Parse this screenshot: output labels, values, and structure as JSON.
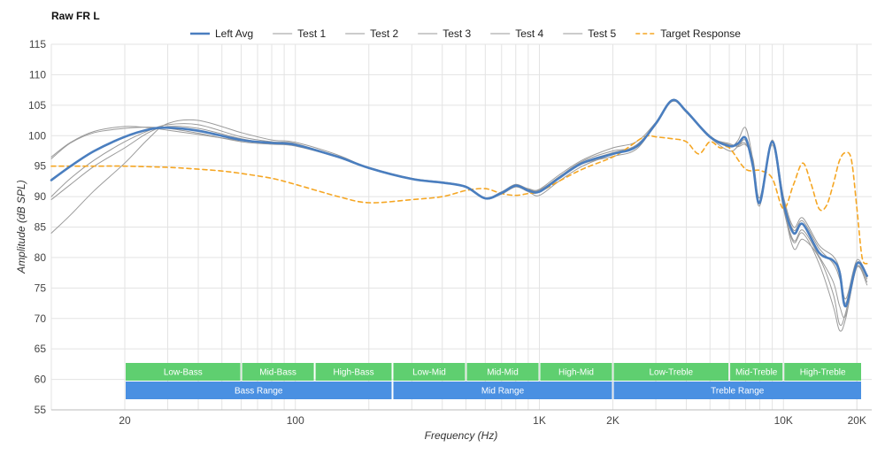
{
  "chart_data": {
    "type": "line",
    "title": "Raw FR L",
    "xlabel": "Frequency (Hz)",
    "ylabel": "Amplitude (dB SPL)",
    "x_scale": "log",
    "xlim": [
      10,
      23000
    ],
    "ylim": [
      55,
      115
    ],
    "y_ticks": [
      55,
      60,
      65,
      70,
      75,
      80,
      85,
      90,
      95,
      100,
      105,
      110,
      115
    ],
    "x_ticks": [
      {
        "value": 20,
        "label": "20"
      },
      {
        "value": 100,
        "label": "100"
      },
      {
        "value": 1000,
        "label": "1K"
      },
      {
        "value": 2000,
        "label": "2K"
      },
      {
        "value": 10000,
        "label": "10K"
      },
      {
        "value": 20000,
        "label": "20K"
      }
    ],
    "grid": true,
    "legend_position": "top",
    "series": [
      {
        "name": "Left Avg",
        "color": "#4a7ebf",
        "style": "solid",
        "width": 2.6,
        "x": [
          10,
          12,
          15,
          20,
          25,
          30,
          40,
          60,
          80,
          100,
          150,
          200,
          300,
          400,
          500,
          600,
          700,
          800,
          900,
          1000,
          1200,
          1500,
          2000,
          2500,
          3000,
          3500,
          4000,
          5000,
          6000,
          6500,
          7000,
          7500,
          8000,
          9000,
          10000,
          11000,
          12000,
          14000,
          16000,
          17000,
          18000,
          20000,
          22000
        ],
        "y": [
          92.7,
          95,
          97.5,
          99.8,
          101,
          101.3,
          100.8,
          99.3,
          98.8,
          98.5,
          96.5,
          94.7,
          92.9,
          92.3,
          91.6,
          89.7,
          90.6,
          91.8,
          91,
          90.8,
          93,
          95.5,
          97,
          98.2,
          102,
          105.8,
          104,
          99.8,
          98.3,
          98.7,
          99.6,
          95,
          89,
          99,
          89,
          84,
          85.5,
          80.8,
          79.5,
          77.5,
          72,
          79,
          77
        ]
      },
      {
        "name": "Test 1",
        "color": "#9a9a9a",
        "style": "solid",
        "width": 1,
        "x": [
          10,
          12,
          15,
          20,
          25,
          30,
          40,
          60,
          80,
          100,
          150,
          200,
          300,
          400,
          500,
          600,
          700,
          800,
          900,
          1000,
          1200,
          1500,
          2000,
          2500,
          3000,
          3500,
          4000,
          5000,
          6000,
          6500,
          7000,
          7500,
          8000,
          9000,
          10000,
          11000,
          12000,
          14000,
          16000,
          17000,
          18000,
          20000,
          22000
        ],
        "y": [
          84,
          87,
          91,
          95.5,
          99.5,
          102,
          102.5,
          100.5,
          99.3,
          98.9,
          96.8,
          94.7,
          92.9,
          92.3,
          91.6,
          89.8,
          90.4,
          91.6,
          90.8,
          90.2,
          92.5,
          95,
          97,
          98.5,
          102,
          105.9,
          104,
          100,
          98.2,
          99.2,
          101.3,
          96,
          89,
          98.5,
          88,
          82.5,
          84,
          79,
          72,
          68,
          70,
          78.5,
          76
        ]
      },
      {
        "name": "Test 2",
        "color": "#9a9a9a",
        "style": "solid",
        "width": 1,
        "x": [
          10,
          12,
          15,
          20,
          25,
          30,
          40,
          60,
          80,
          100,
          150,
          200,
          300,
          400,
          500,
          600,
          700,
          800,
          900,
          1000,
          1200,
          1500,
          2000,
          2500,
          3000,
          3500,
          4000,
          5000,
          6000,
          6500,
          7000,
          7500,
          8000,
          9000,
          10000,
          11000,
          12000,
          14000,
          16000,
          17000,
          18000,
          20000,
          22000
        ],
        "y": [
          89.5,
          92,
          95,
          98,
          100.5,
          101.5,
          101.2,
          99.5,
          98.7,
          98.4,
          96.5,
          94.7,
          92.9,
          92.3,
          91.6,
          89.6,
          90.5,
          91.7,
          91.1,
          91.2,
          93.5,
          96,
          98,
          99,
          102.2,
          105.7,
          103.8,
          99.7,
          97.5,
          98.2,
          99.2,
          94.5,
          88.5,
          98.8,
          88.5,
          81.5,
          83,
          80,
          74,
          69,
          71,
          79,
          76.5
        ]
      },
      {
        "name": "Test 3",
        "color": "#9a9a9a",
        "style": "solid",
        "width": 1,
        "x": [
          10,
          12,
          15,
          20,
          25,
          30,
          40,
          60,
          80,
          100,
          150,
          200,
          300,
          400,
          500,
          600,
          700,
          800,
          900,
          1000,
          1200,
          1500,
          2000,
          2500,
          3000,
          3500,
          4000,
          5000,
          6000,
          6500,
          7000,
          7500,
          8000,
          9000,
          10000,
          11000,
          12000,
          14000,
          16000,
          17000,
          18000,
          20000,
          22000
        ],
        "y": [
          96.2,
          98.8,
          100.5,
          101.2,
          101.4,
          101.2,
          100.4,
          99,
          98.6,
          98.3,
          96.4,
          94.6,
          92.9,
          92.4,
          91.7,
          89.8,
          90.8,
          92,
          91.2,
          91,
          93.2,
          95.8,
          97.5,
          98.2,
          101.8,
          105.6,
          103.9,
          99.9,
          98.5,
          98.4,
          98.7,
          95.5,
          89.2,
          99.2,
          89.5,
          84.5,
          86,
          81.5,
          79,
          76.5,
          72.5,
          79.2,
          77
        ]
      },
      {
        "name": "Test 4",
        "color": "#9a9a9a",
        "style": "solid",
        "width": 1,
        "x": [
          10,
          12,
          15,
          20,
          25,
          30,
          40,
          60,
          80,
          100,
          150,
          200,
          300,
          400,
          500,
          600,
          700,
          800,
          900,
          1000,
          1200,
          1500,
          2000,
          2500,
          3000,
          3500,
          4000,
          5000,
          6000,
          6500,
          7000,
          7500,
          8000,
          9000,
          10000,
          11000,
          12000,
          14000,
          16000,
          17000,
          18000,
          20000,
          22000
        ],
        "y": [
          96.5,
          98.9,
          100.7,
          101.5,
          101.3,
          100.9,
          100.2,
          99.2,
          98.9,
          98.6,
          96.6,
          94.8,
          93,
          92.4,
          91.6,
          89.7,
          90.5,
          91.8,
          91,
          90.8,
          93.2,
          95.4,
          96.6,
          97.8,
          102.1,
          105.9,
          104.1,
          99.8,
          98.7,
          98.2,
          98.5,
          96.2,
          89.8,
          99.3,
          90,
          85,
          86.5,
          82,
          80.2,
          78,
          73.2,
          79.6,
          76.8
        ]
      },
      {
        "name": "Test 5",
        "color": "#9a9a9a",
        "style": "solid",
        "width": 1,
        "x": [
          10,
          12,
          15,
          20,
          25,
          30,
          40,
          60,
          80,
          100,
          150,
          200,
          300,
          400,
          500,
          600,
          700,
          800,
          900,
          1000,
          1200,
          1500,
          2000,
          2500,
          3000,
          3500,
          4000,
          5000,
          6000,
          6500,
          7000,
          7500,
          8000,
          9000,
          10000,
          11000,
          12000,
          14000,
          16000,
          17000,
          18000,
          20000,
          22000
        ],
        "y": [
          90,
          93,
          96,
          99,
          100.8,
          101.8,
          101.8,
          99.8,
          99,
          98.7,
          96.5,
          94.7,
          92.9,
          92.3,
          91.6,
          89.7,
          90.7,
          91.9,
          91.3,
          91.1,
          93.1,
          95.6,
          97.2,
          98.4,
          102,
          105.7,
          103.9,
          99.7,
          98.4,
          98.5,
          99.6,
          95.2,
          88.9,
          98.9,
          88.6,
          82.8,
          84.5,
          80.2,
          76,
          72,
          70.5,
          78.4,
          75.5
        ]
      },
      {
        "name": "Target Response",
        "color": "#f5a623",
        "style": "dashed",
        "width": 1.6,
        "x": [
          10,
          15,
          20,
          30,
          40,
          50,
          60,
          80,
          100,
          150,
          200,
          300,
          400,
          500,
          600,
          700,
          800,
          900,
          1000,
          1200,
          1500,
          2000,
          2300,
          2600,
          2800,
          3000,
          3500,
          4000,
          4500,
          5000,
          5500,
          6000,
          7000,
          8000,
          9000,
          10000,
          11000,
          12000,
          13000,
          14000,
          15000,
          16000,
          17000,
          18000,
          19000,
          20000,
          21000,
          22000
        ],
        "y": [
          95,
          95,
          95,
          94.8,
          94.5,
          94.2,
          93.8,
          93,
          92,
          90,
          89,
          89.5,
          90,
          91,
          91.3,
          90.5,
          90.2,
          90.5,
          90.8,
          92.5,
          94.5,
          96.5,
          98,
          99.5,
          100,
          99.8,
          99.5,
          99,
          97,
          99,
          98,
          98,
          94.5,
          94.3,
          93,
          88,
          92,
          95.5,
          92,
          88,
          88.5,
          92,
          96,
          97.2,
          96,
          88,
          80,
          79
        ]
      }
    ],
    "range_bands": {
      "top_row": [
        {
          "label": "Low-Bass",
          "from": 20,
          "to": 60,
          "color": "#5fcf70"
        },
        {
          "label": "Mid-Bass",
          "from": 60,
          "to": 120,
          "color": "#5fcf70"
        },
        {
          "label": "High-Bass",
          "from": 120,
          "to": 250,
          "color": "#5fcf70"
        },
        {
          "label": "Low-Mid",
          "from": 250,
          "to": 500,
          "color": "#5fcf70"
        },
        {
          "label": "Mid-Mid",
          "from": 500,
          "to": 1000,
          "color": "#5fcf70"
        },
        {
          "label": "High-Mid",
          "from": 1000,
          "to": 2000,
          "color": "#5fcf70"
        },
        {
          "label": "Low-Treble",
          "from": 2000,
          "to": 6000,
          "color": "#5fcf70"
        },
        {
          "label": "Mid-Treble",
          "from": 6000,
          "to": 10000,
          "color": "#5fcf70"
        },
        {
          "label": "High-Treble",
          "from": 10000,
          "to": 22000,
          "color": "#5fcf70"
        }
      ],
      "bottom_row": [
        {
          "label": "Bass Range",
          "from": 20,
          "to": 250,
          "color": "#4a90e2"
        },
        {
          "label": "Mid Range",
          "from": 250,
          "to": 2000,
          "color": "#4a90e2"
        },
        {
          "label": "Treble Range",
          "from": 2000,
          "to": 22000,
          "color": "#4a90e2"
        }
      ]
    }
  }
}
